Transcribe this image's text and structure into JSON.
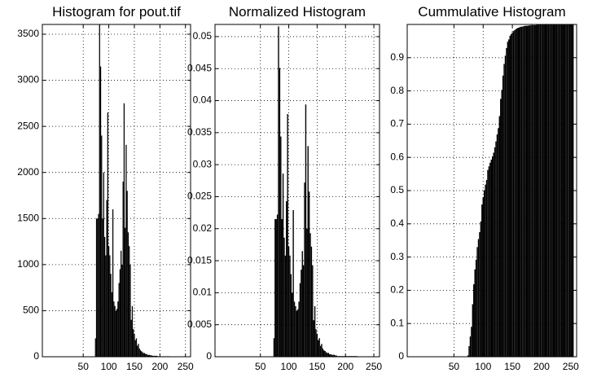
{
  "chart_data": [
    {
      "type": "bar",
      "title": "Histogram for pout.tif",
      "color": "#000000",
      "grid": true,
      "xlim": [
        -30,
        260
      ],
      "xticks": [
        50,
        100,
        150,
        200,
        250
      ],
      "ylim": [
        0,
        3606
      ],
      "yticks": [
        0,
        500,
        1000,
        1500,
        2000,
        2500,
        3000,
        3500
      ],
      "x": [
        74,
        76,
        78,
        80,
        82,
        84,
        86,
        88,
        90,
        92,
        94,
        96,
        98,
        100,
        102,
        104,
        106,
        108,
        110,
        112,
        114,
        116,
        118,
        120,
        122,
        124,
        126,
        128,
        130,
        132,
        134,
        136,
        138,
        140,
        142,
        144,
        146,
        148,
        150,
        152,
        154,
        156,
        158,
        160,
        162,
        164,
        166,
        168,
        170,
        172,
        174,
        176,
        178,
        180,
        182,
        184,
        186,
        188,
        190,
        192,
        194,
        196,
        198,
        200,
        202,
        204,
        206,
        208,
        210,
        212,
        214,
        216,
        218,
        220
      ],
      "values": [
        200,
        1500,
        1500,
        1550,
        3606,
        3150,
        2400,
        1500,
        2000,
        1300,
        1100,
        1700,
        2650,
        1200,
        1100,
        900,
        700,
        1600,
        600,
        550,
        500,
        520,
        600,
        800,
        950,
        1150,
        1000,
        1900,
        2750,
        1400,
        2300,
        1800,
        1350,
        1200,
        1000,
        400,
        550,
        300,
        250,
        180,
        200,
        120,
        140,
        90,
        70,
        60,
        50,
        40,
        40,
        30,
        30,
        20,
        20,
        20,
        15,
        15,
        10,
        10,
        10,
        10,
        10,
        5,
        5,
        5,
        5,
        5,
        5,
        5,
        5,
        5,
        5,
        5,
        5,
        5
      ]
    },
    {
      "type": "bar",
      "title": "Normalized Histogram",
      "color": "#000000",
      "grid": true,
      "xlim": [
        -30,
        260
      ],
      "xticks": [
        50,
        100,
        150,
        200,
        250
      ],
      "ylim": [
        0,
        0.0519
      ],
      "yticks": [
        0,
        0.005,
        0.01,
        0.015,
        0.02,
        0.025,
        0.03,
        0.035,
        0.04,
        0.045,
        0.05
      ],
      "x": [
        74,
        76,
        78,
        80,
        82,
        84,
        86,
        88,
        90,
        92,
        94,
        96,
        98,
        100,
        102,
        104,
        106,
        108,
        110,
        112,
        114,
        116,
        118,
        120,
        122,
        124,
        126,
        128,
        130,
        132,
        134,
        136,
        138,
        140,
        142,
        144,
        146,
        148,
        150,
        152,
        154,
        156,
        158,
        160,
        162,
        164,
        166,
        168,
        170,
        172,
        174,
        176,
        178,
        180,
        182,
        184,
        186,
        188,
        190,
        192,
        194,
        196,
        198,
        200,
        202,
        204,
        206,
        208,
        210,
        212,
        214,
        216,
        218,
        220
      ],
      "values": [
        0.0029,
        0.0215,
        0.0215,
        0.0222,
        0.0516,
        0.0451,
        0.0344,
        0.0215,
        0.0286,
        0.0186,
        0.0158,
        0.0243,
        0.0379,
        0.0172,
        0.0158,
        0.0129,
        0.01,
        0.0229,
        0.0086,
        0.0079,
        0.0072,
        0.0074,
        0.0086,
        0.0115,
        0.0136,
        0.0165,
        0.0143,
        0.0272,
        0.0394,
        0.02,
        0.0329,
        0.0258,
        0.0193,
        0.0172,
        0.0143,
        0.0057,
        0.0079,
        0.0043,
        0.0036,
        0.0026,
        0.0029,
        0.0017,
        0.002,
        0.0013,
        0.001,
        0.0009,
        0.0007,
        0.0006,
        0.0006,
        0.0004,
        0.0004,
        0.0003,
        0.0003,
        0.0003,
        0.0002,
        0.0002,
        0.0001,
        0.0001,
        0.0001,
        0.0001,
        0.0001,
        0.0001,
        0.0001,
        0.0001,
        0.0001,
        0.0001,
        0.0001,
        0.0001,
        0.0001,
        0.0001,
        0.0001,
        0.0001,
        0.0001,
        0.0001
      ]
    },
    {
      "type": "bar",
      "title": "Cummulative Histogram",
      "color": "#000000",
      "grid": true,
      "xlim": [
        -30,
        260
      ],
      "xticks": [
        50,
        100,
        150,
        200,
        250
      ],
      "ylim": [
        0,
        1
      ],
      "yticks": [
        0,
        0.1,
        0.2,
        0.3,
        0.4,
        0.5,
        0.6,
        0.7,
        0.8,
        0.9
      ],
      "x": [
        74,
        76,
        78,
        80,
        82,
        84,
        86,
        88,
        90,
        92,
        94,
        96,
        98,
        100,
        102,
        104,
        106,
        108,
        110,
        112,
        114,
        116,
        118,
        120,
        122,
        124,
        126,
        128,
        130,
        132,
        134,
        136,
        138,
        140,
        142,
        144,
        146,
        148,
        150,
        152,
        154,
        156,
        158,
        160,
        162,
        164,
        166,
        168,
        170,
        172,
        174,
        176,
        178,
        180,
        182,
        184,
        186,
        188,
        190,
        192,
        194,
        196,
        198,
        200,
        202,
        204,
        206,
        208,
        210,
        212,
        214,
        216,
        218,
        220,
        222,
        224,
        226,
        228,
        230,
        232,
        234,
        236,
        238,
        240,
        242,
        244,
        246,
        248,
        250,
        252,
        254
      ],
      "values": [
        0.004,
        0.032,
        0.061,
        0.09,
        0.158,
        0.218,
        0.263,
        0.292,
        0.33,
        0.354,
        0.375,
        0.407,
        0.458,
        0.48,
        0.501,
        0.518,
        0.532,
        0.562,
        0.573,
        0.584,
        0.593,
        0.603,
        0.614,
        0.63,
        0.648,
        0.669,
        0.688,
        0.724,
        0.776,
        0.803,
        0.846,
        0.881,
        0.906,
        0.929,
        0.948,
        0.955,
        0.966,
        0.971,
        0.976,
        0.98,
        0.983,
        0.986,
        0.988,
        0.99,
        0.991,
        0.993,
        0.993,
        0.994,
        0.995,
        0.996,
        0.996,
        0.996,
        0.997,
        0.997,
        0.998,
        0.998,
        0.998,
        0.998,
        0.998,
        0.999,
        0.999,
        0.999,
        0.999,
        0.999,
        0.999,
        0.999,
        0.999,
        0.999,
        0.999,
        0.999,
        0.999,
        0.999,
        0.999,
        1,
        1,
        1,
        1,
        1,
        1,
        1,
        1,
        1,
        1,
        1,
        1,
        1,
        1,
        1,
        1,
        1,
        1
      ]
    }
  ]
}
